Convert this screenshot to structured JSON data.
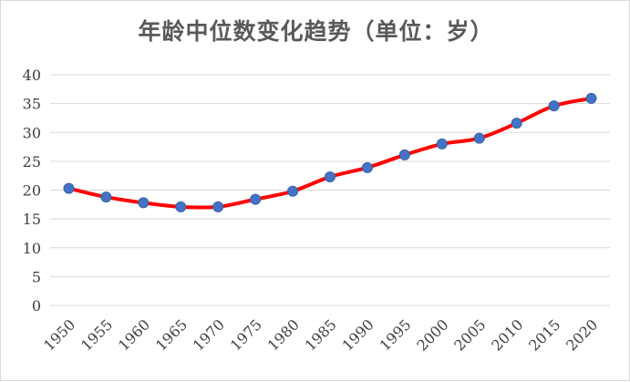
{
  "chart_data": {
    "type": "line",
    "title": "年龄中位数变化趋势（单位：岁）",
    "xlabel": "",
    "ylabel": "",
    "x": [
      "1950",
      "1955",
      "1960",
      "1965",
      "1970",
      "1975",
      "1980",
      "1985",
      "1990",
      "1995",
      "2000",
      "2005",
      "2010",
      "2015",
      "2020"
    ],
    "series": [
      {
        "values": [
          20.3,
          18.8,
          17.8,
          17.1,
          17.1,
          18.4,
          19.8,
          22.3,
          23.9,
          26.1,
          28.0,
          29.0,
          31.6,
          34.6,
          35.9
        ]
      }
    ],
    "ylim": [
      0,
      40
    ],
    "yticks": [
      "0",
      "5",
      "10",
      "15",
      "20",
      "25",
      "30",
      "35",
      "40"
    ],
    "grid": "horizontal",
    "legend": "none",
    "colors": {
      "line": "#ff0000",
      "marker": "#4472c4",
      "grid": "#d9d9d9",
      "title": "#595959"
    }
  }
}
